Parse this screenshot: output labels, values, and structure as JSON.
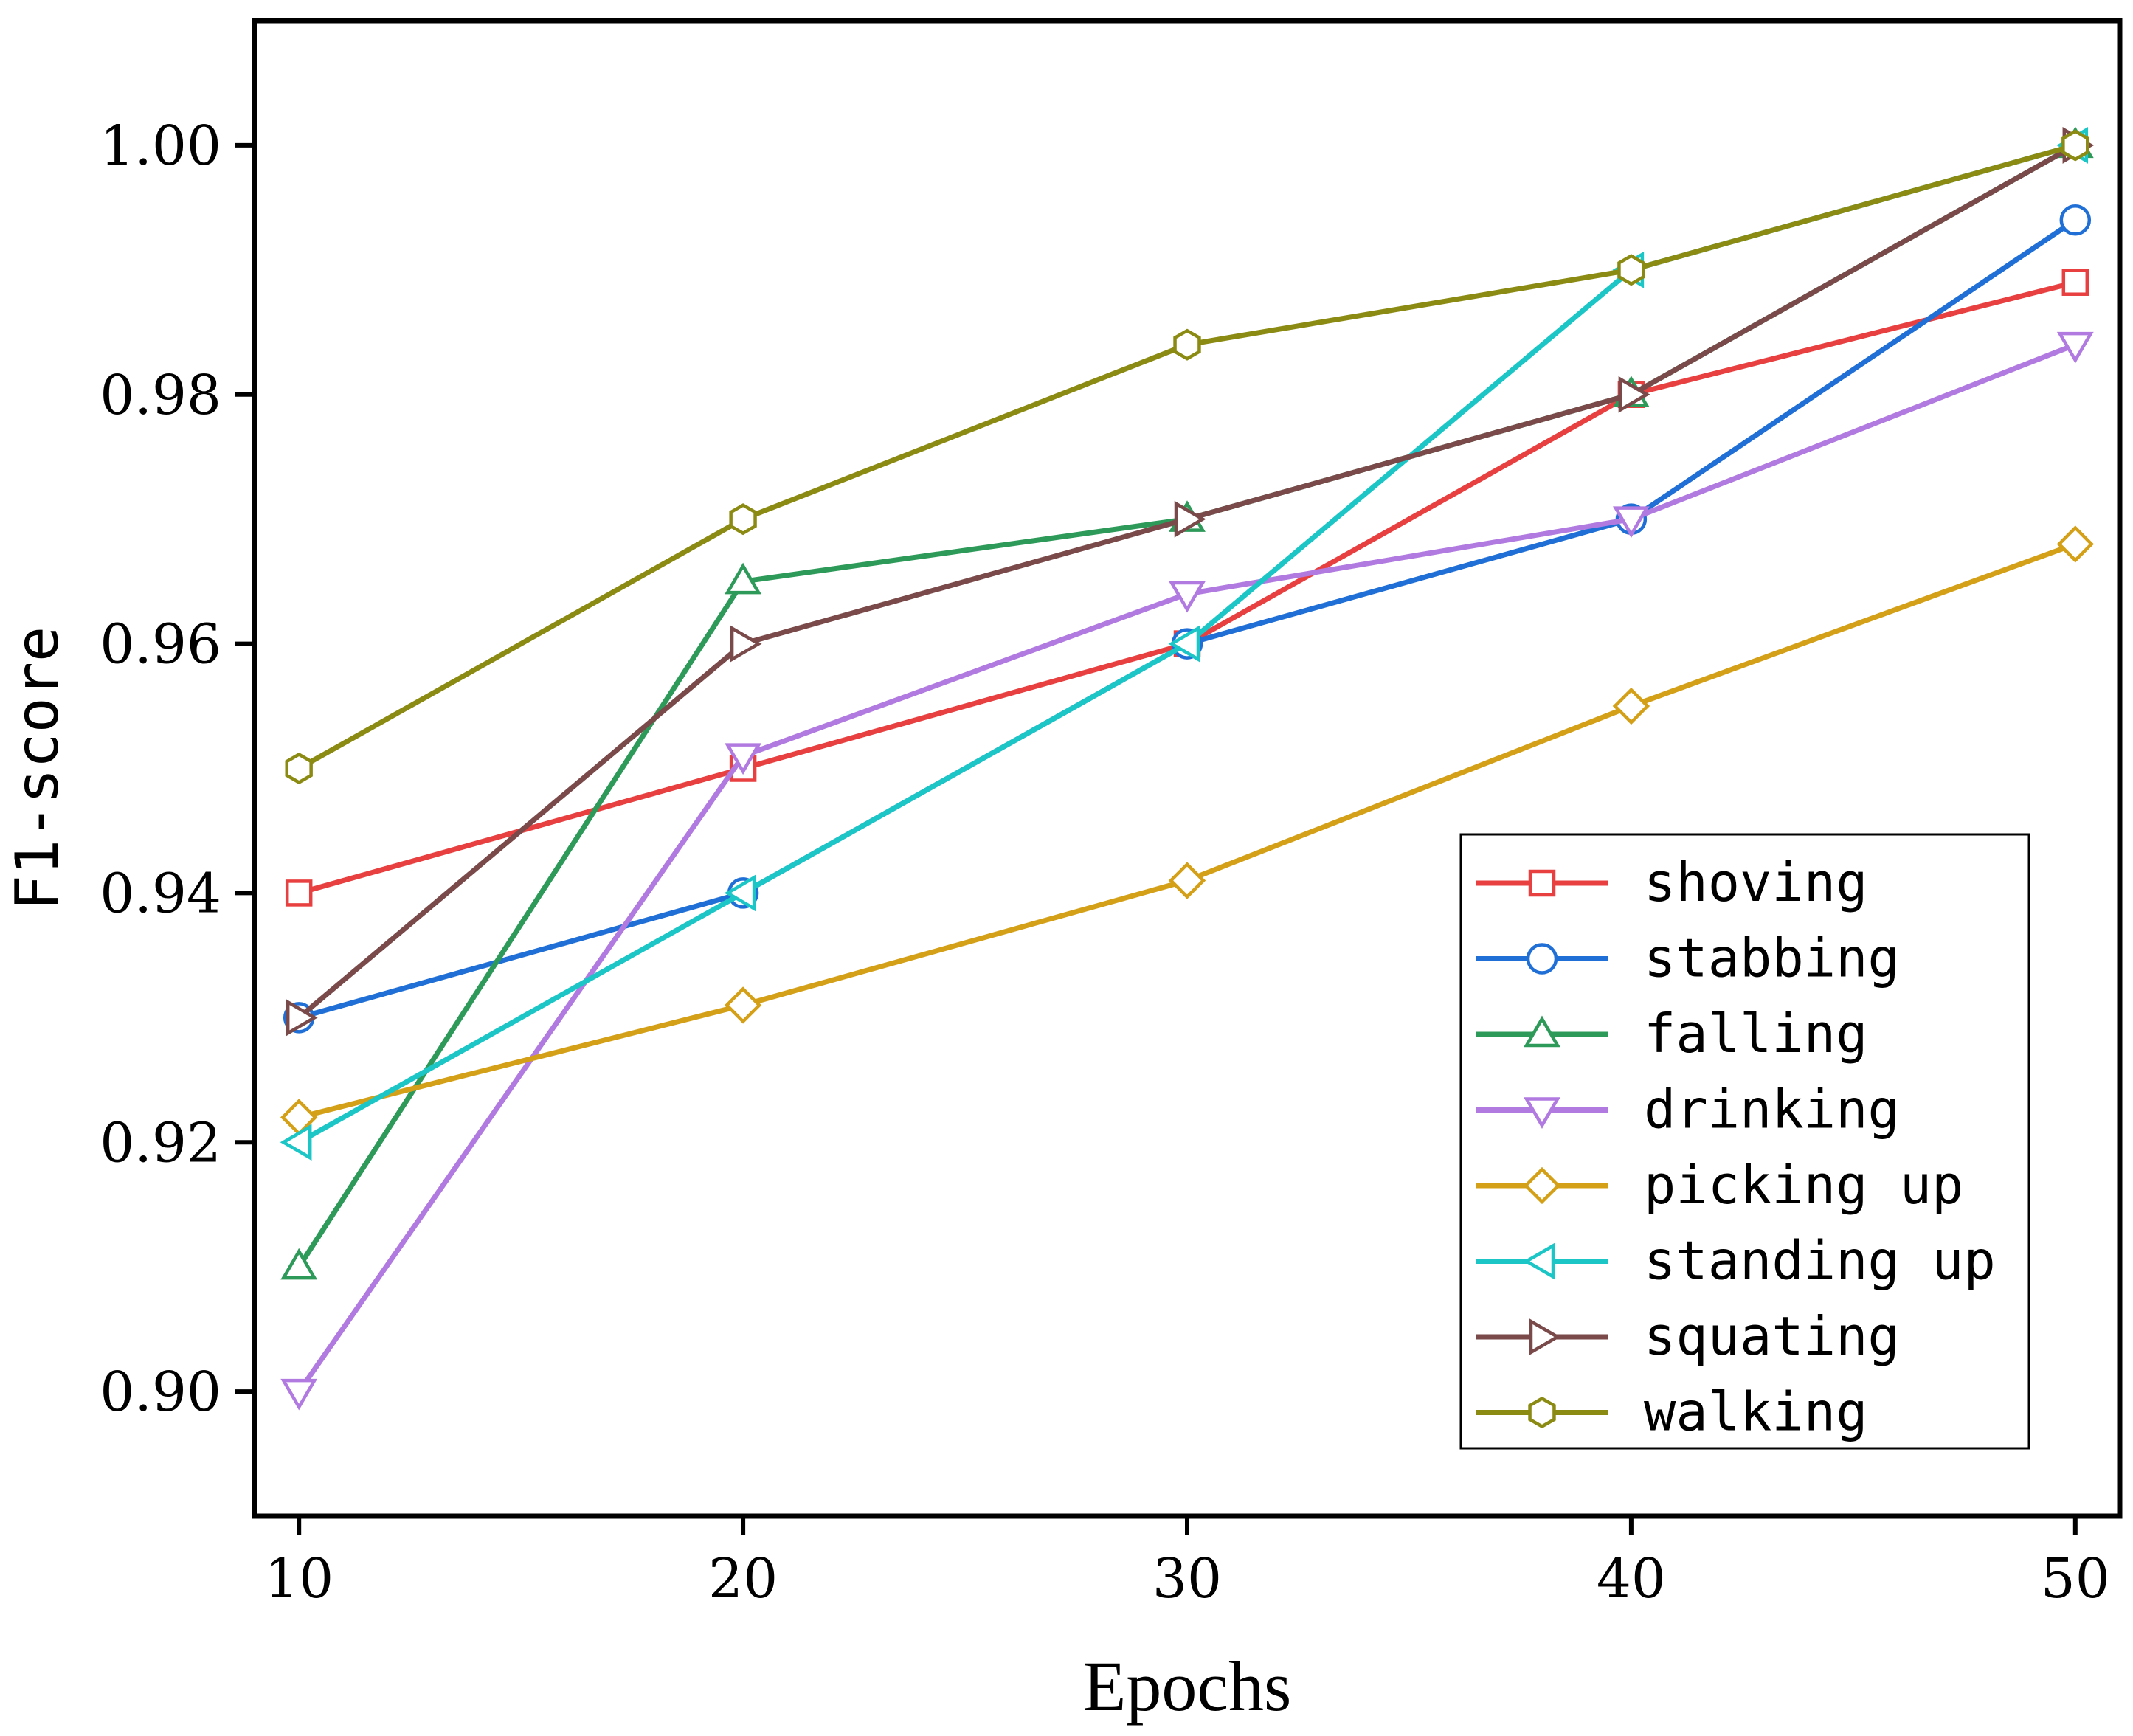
{
  "chart_data": {
    "type": "line",
    "title": "",
    "xlabel": "Epochs",
    "ylabel": "F1-score",
    "x": [
      10,
      20,
      30,
      40,
      50
    ],
    "xlim": [
      9,
      51
    ],
    "ylim": [
      0.89,
      1.01
    ],
    "xticks": [
      "10",
      "20",
      "30",
      "40",
      "50"
    ],
    "yticks": [
      {
        "value": 0.9,
        "label": "0.90"
      },
      {
        "value": 0.92,
        "label": "0.92"
      },
      {
        "value": 0.94,
        "label": "0.94"
      },
      {
        "value": 0.96,
        "label": "0.96"
      },
      {
        "value": 0.98,
        "label": "0.98"
      },
      {
        "value": 1.0,
        "label": "1.00"
      }
    ],
    "grid": false,
    "legend_position": "lower-right",
    "series": [
      {
        "name": "shoving",
        "color": "#e84040",
        "marker": "square",
        "values": [
          0.94,
          0.95,
          0.96,
          0.98,
          0.989
        ]
      },
      {
        "name": "stabbing",
        "color": "#1f6fd6",
        "marker": "circle",
        "values": [
          0.93,
          0.94,
          0.96,
          0.97,
          0.994
        ]
      },
      {
        "name": "falling",
        "color": "#2e9a5a",
        "marker": "triangle-up",
        "values": [
          0.91,
          0.965,
          0.97,
          0.98,
          1.0
        ]
      },
      {
        "name": "drinking",
        "color": "#b07ae0",
        "marker": "triangle-down",
        "values": [
          0.9,
          0.951,
          0.964,
          0.97,
          0.984
        ]
      },
      {
        "name": "picking up",
        "color": "#d4a017",
        "marker": "diamond",
        "values": [
          0.922,
          0.931,
          0.941,
          0.955,
          0.968
        ]
      },
      {
        "name": "standing up",
        "color": "#1cc6c6",
        "marker": "triangle-left",
        "values": [
          0.92,
          0.94,
          0.96,
          0.99,
          1.0
        ]
      },
      {
        "name": "squating",
        "color": "#7a4a4a",
        "marker": "triangle-right",
        "values": [
          0.93,
          0.96,
          0.97,
          0.98,
          1.0
        ]
      },
      {
        "name": "walking",
        "color": "#8b8b14",
        "marker": "hexagon",
        "values": [
          0.95,
          0.97,
          0.984,
          0.99,
          1.0
        ]
      }
    ]
  }
}
